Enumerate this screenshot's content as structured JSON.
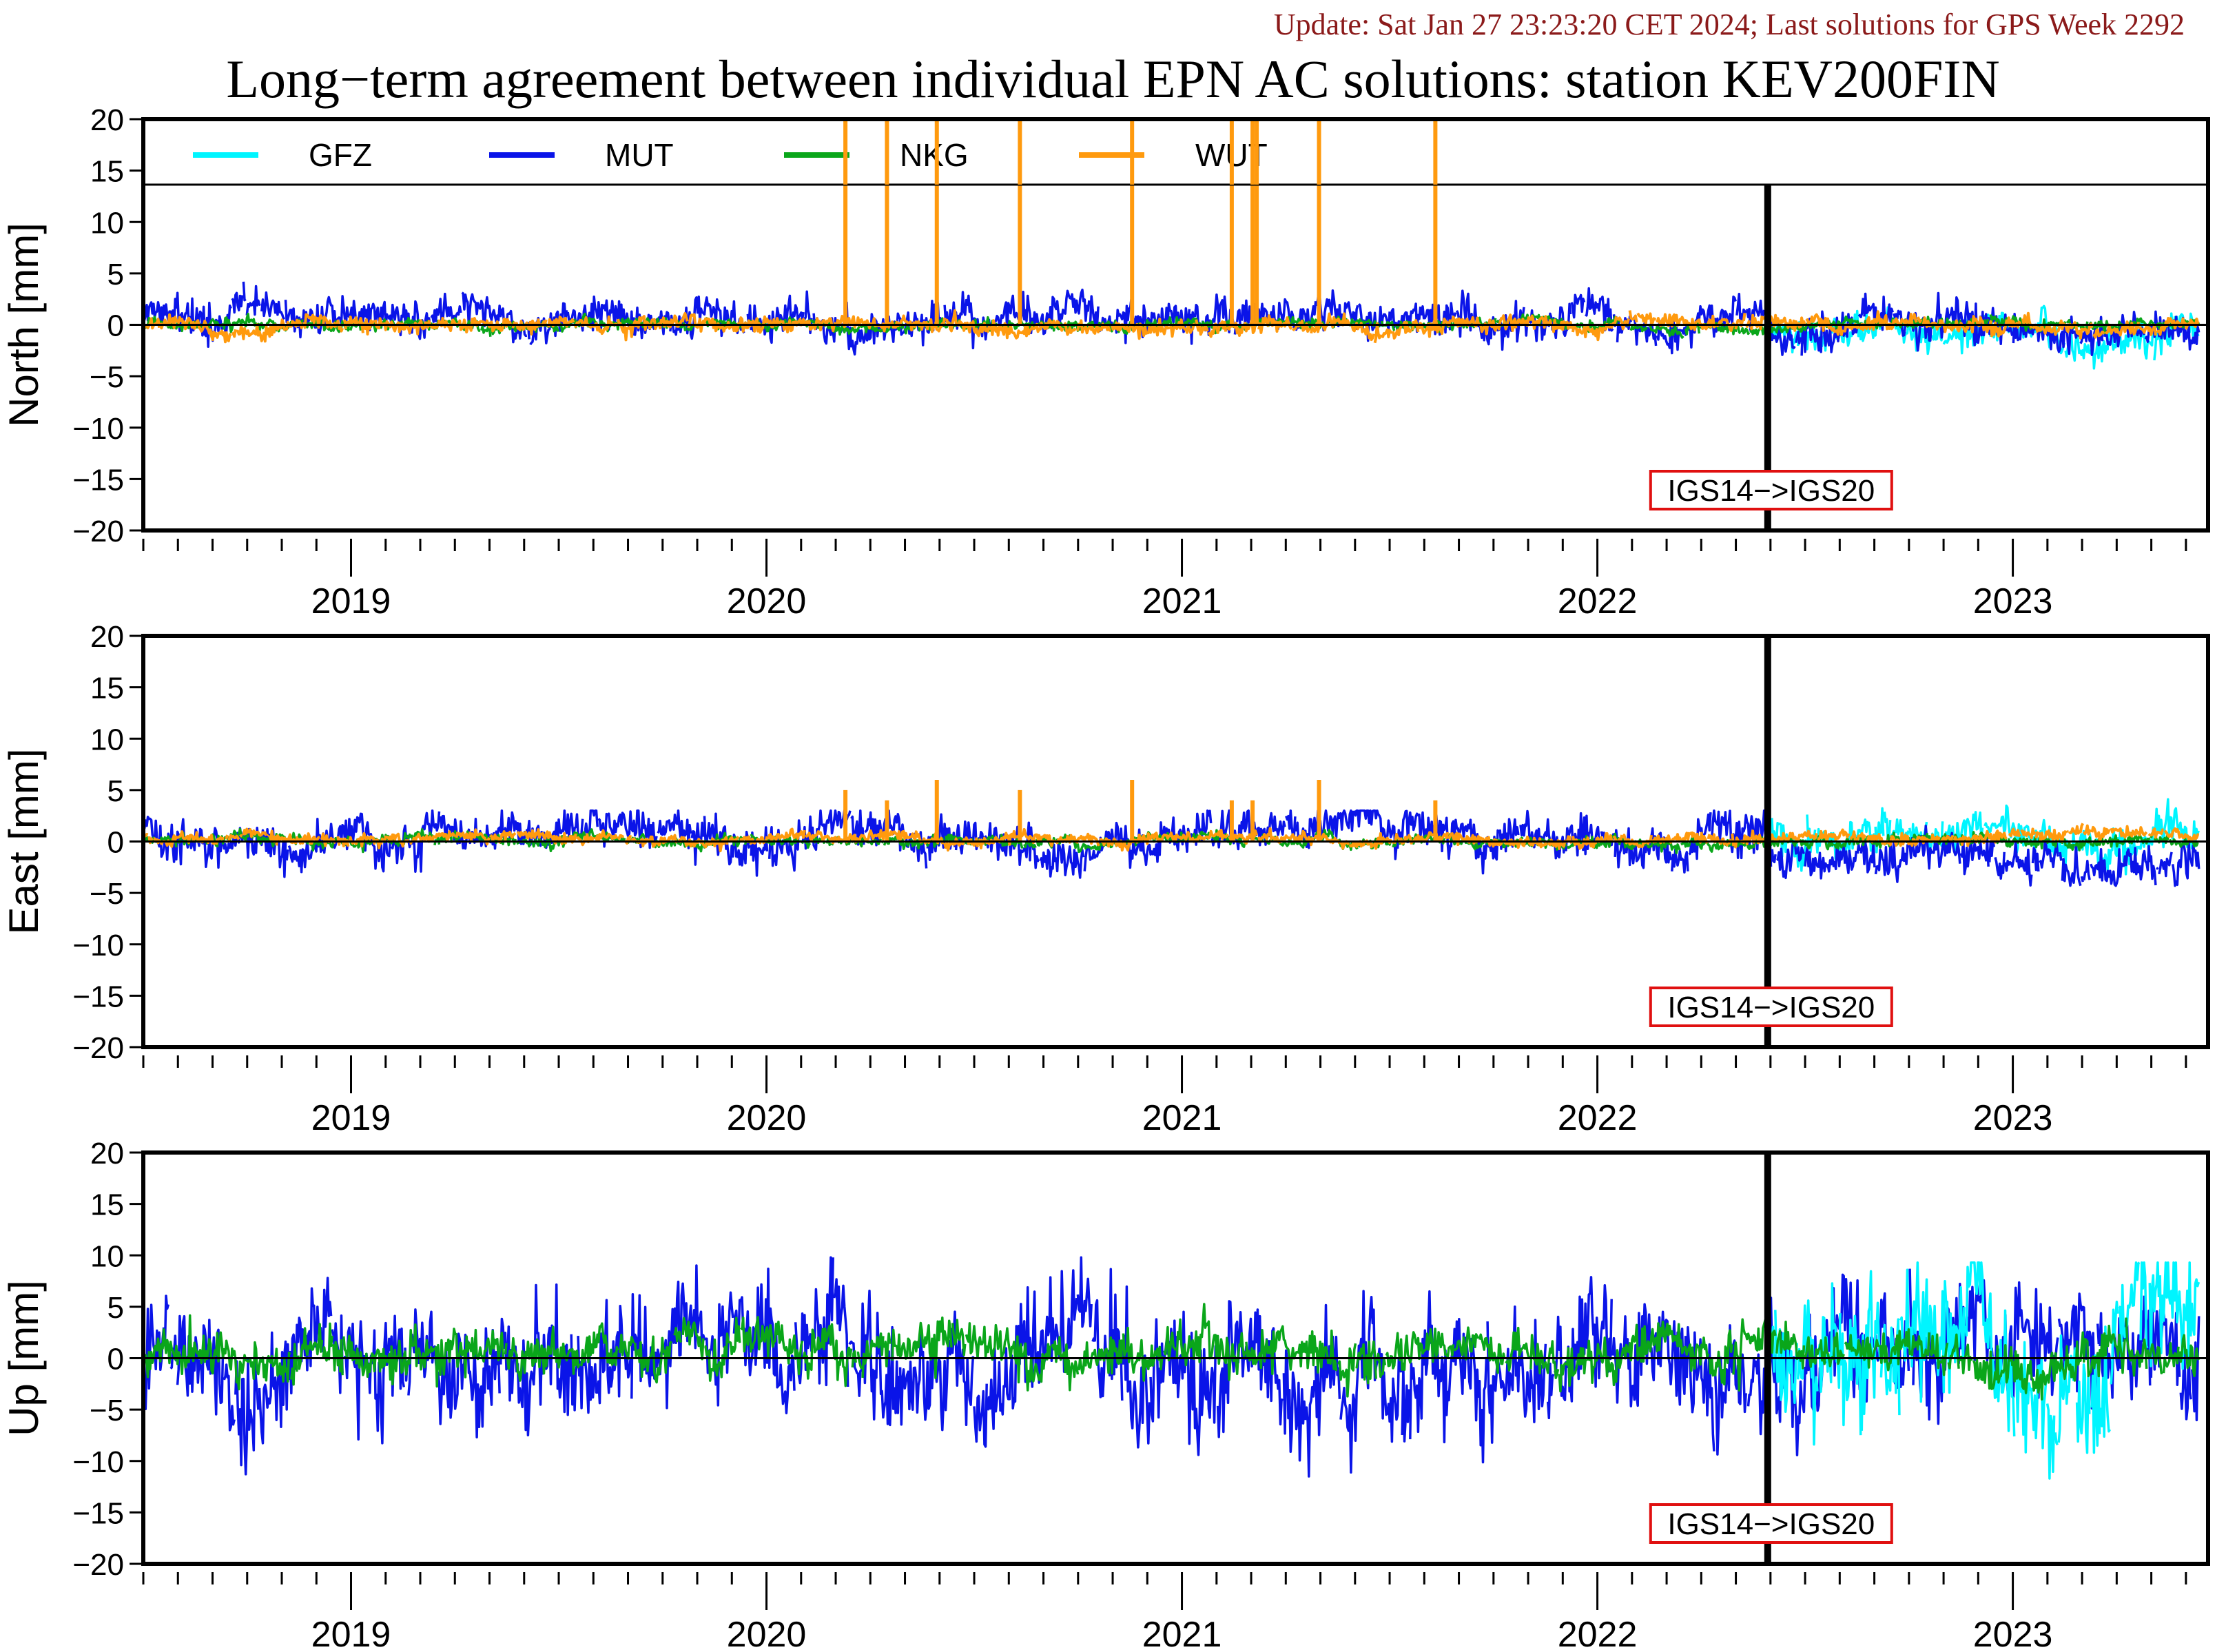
{
  "header": {
    "update": "Update: Sat Jan 27 23:23:20 CET 2024; Last solutions for GPS Week 2292",
    "title": "Long−term agreement between individual EPN AC solutions: station KEV200FIN"
  },
  "colors": {
    "GFZ": "#00f5ff",
    "MUT": "#0a14e8",
    "NKG": "#0aa61a",
    "WUT": "#ff9a0e",
    "annotation_box": "#e01010",
    "update_text": "#8b1a1a"
  },
  "chart_data": [
    {
      "type": "line",
      "panel": "north",
      "ylabel": "North [mm]",
      "ylim": [
        -20,
        20
      ],
      "yticks": [
        "20",
        "15",
        "10",
        "5",
        "0",
        "−5",
        "−10",
        "−15",
        "−20"
      ],
      "xlim": [
        2018.5,
        2023.47
      ],
      "x_tick_labels": [
        "2019",
        "2020",
        "2021",
        "2022",
        "2023"
      ],
      "legend": [
        "GFZ",
        "MUT",
        "NKG",
        "WUT"
      ],
      "legend_placement": "top, inside panel",
      "annotation": {
        "text": "IGS14−>IGS20",
        "x": 2022.41
      },
      "frame_change_x": 2022.41,
      "series": [
        {
          "name": "MUT",
          "x_start": 2018.5,
          "x_end": 2023.45,
          "mean_before": 0.5,
          "mean_after": -0.7,
          "spread": 1.0,
          "min": -4.3,
          "max": 4.6
        },
        {
          "name": "GFZ",
          "x_start": 2022.42,
          "x_end": 2023.45,
          "mean": -0.5,
          "spread": 0.9
        },
        {
          "name": "NKG",
          "x_start": 2018.5,
          "x_end": 2023.45,
          "mean": 0.0,
          "spread": 0.3
        },
        {
          "name": "WUT",
          "x_start": 2018.5,
          "x_end": 2023.45,
          "mean": 0.0,
          "spread": 0.4,
          "spikes": [
            [
              2020.19,
              20
            ],
            [
              2020.29,
              20
            ],
            [
              2020.41,
              20
            ],
            [
              2020.61,
              20
            ],
            [
              2020.88,
              20
            ],
            [
              2021.12,
              20
            ],
            [
              2021.17,
              20
            ],
            [
              2021.18,
              20
            ],
            [
              2021.33,
              20
            ],
            [
              2021.61,
              20
            ]
          ]
        }
      ]
    },
    {
      "type": "line",
      "panel": "east",
      "ylabel": "East [mm]",
      "ylim": [
        -20,
        20
      ],
      "yticks": [
        "20",
        "15",
        "10",
        "5",
        "0",
        "−5",
        "−10",
        "−15",
        "−20"
      ],
      "xlim": [
        2018.5,
        2023.47
      ],
      "x_tick_labels": [
        "2019",
        "2020",
        "2021",
        "2022",
        "2023"
      ],
      "annotation": {
        "text": "IGS14−>IGS20",
        "x": 2022.41
      },
      "frame_change_x": 2022.41,
      "series": [
        {
          "name": "MUT",
          "x_start": 2018.5,
          "x_end": 2023.45,
          "mean_before": 0.3,
          "mean_after": -1.4,
          "spread": 1.1,
          "min": -4.3,
          "max": 3.0
        },
        {
          "name": "GFZ",
          "x_start": 2022.42,
          "x_end": 2023.45,
          "mean": 0.6,
          "spread": 1.0
        },
        {
          "name": "NKG",
          "x_start": 2018.5,
          "x_end": 2023.45,
          "mean": 0.0,
          "spread": 0.3
        },
        {
          "name": "WUT",
          "x_start": 2018.5,
          "x_end": 2023.45,
          "mean": 0.3,
          "spread": 0.3,
          "spikes": [
            [
              2020.19,
              5
            ],
            [
              2020.29,
              4
            ],
            [
              2020.41,
              6
            ],
            [
              2020.61,
              5
            ],
            [
              2020.88,
              6
            ],
            [
              2021.12,
              4
            ],
            [
              2021.17,
              4
            ],
            [
              2021.33,
              6
            ],
            [
              2021.61,
              4
            ]
          ]
        }
      ]
    },
    {
      "type": "line",
      "panel": "up",
      "ylabel": "Up [mm]",
      "ylim": [
        -20,
        20
      ],
      "yticks": [
        "20",
        "15",
        "10",
        "5",
        "0",
        "−5",
        "−10",
        "−15",
        "−20"
      ],
      "xlim": [
        2018.5,
        2023.47
      ],
      "x_tick_labels": [
        "2019",
        "2020",
        "2021",
        "2022",
        "2023"
      ],
      "annotation": {
        "text": "IGS14−>IGS20",
        "x": 2022.41
      },
      "frame_change_x": 2022.41,
      "series": [
        {
          "name": "MUT",
          "x_start": 2018.5,
          "x_end": 2023.45,
          "mean_before": -0.5,
          "mean_after": 1.5,
          "spread": 3.0,
          "min": -11.5,
          "max": 9.8
        },
        {
          "name": "GFZ",
          "x_start": 2022.42,
          "x_end": 2023.45,
          "mean": 0.5,
          "spread": 4.0,
          "min": -11.7,
          "max": 9.3
        },
        {
          "name": "NKG",
          "x_start": 2018.5,
          "x_end": 2023.45,
          "mean": 0.3,
          "spread": 1.2,
          "min": -4.0,
          "max": 7.5
        }
      ]
    }
  ]
}
